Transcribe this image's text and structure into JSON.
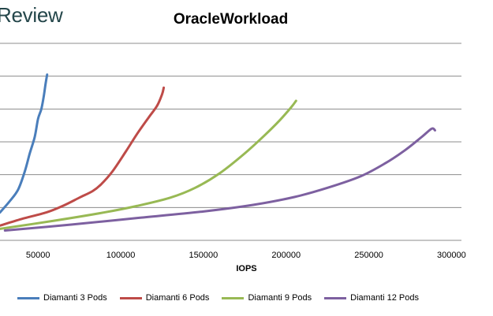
{
  "watermark": "Review",
  "chart_data": {
    "type": "line",
    "title": "OracleWorkload",
    "xlabel": "IOPS",
    "ylabel": "",
    "xlim": [
      27000,
      306000
    ],
    "ylim": [
      0,
      6
    ],
    "xticks": [
      50000,
      100000,
      150000,
      200000,
      250000,
      300000
    ],
    "xtick_labels": [
      "50000",
      "100000",
      "150000",
      "200000",
      "250000",
      "300000"
    ],
    "grid": true,
    "legend": "bottom",
    "series": [
      {
        "name": "Diamanti 3 Pods",
        "color": "#4a7ebb",
        "x": [
          27000,
          33000,
          38000,
          42000,
          45000,
          48000,
          50000,
          52000,
          53500,
          54500,
          55500
        ],
        "y": [
          0.85,
          1.2,
          1.55,
          2.1,
          2.65,
          3.15,
          3.7,
          4.0,
          4.4,
          4.75,
          5.05
        ]
      },
      {
        "name": "Diamanti 6 Pods",
        "color": "#be4b48",
        "x": [
          27000,
          40000,
          55000,
          65000,
          75000,
          83000,
          88000,
          95000,
          103000,
          110000,
          117000,
          122000,
          125000,
          126000
        ],
        "y": [
          0.45,
          0.65,
          0.85,
          1.05,
          1.3,
          1.5,
          1.7,
          2.1,
          2.7,
          3.25,
          3.75,
          4.1,
          4.45,
          4.65
        ]
      },
      {
        "name": "Diamanti 9 Pods",
        "color": "#98b954",
        "x": [
          27000,
          60000,
          90000,
          110000,
          130000,
          145000,
          160000,
          175000,
          187000,
          196000,
          203000,
          206000
        ],
        "y": [
          0.35,
          0.6,
          0.85,
          1.05,
          1.3,
          1.6,
          2.05,
          2.65,
          3.2,
          3.65,
          4.05,
          4.25
        ]
      },
      {
        "name": "Diamanti 12 Pods",
        "color": "#7d60a0",
        "x": [
          30000,
          70000,
          110000,
          150000,
          180000,
          205000,
          225000,
          245000,
          260000,
          272000,
          282000,
          288000,
          290000
        ],
        "y": [
          0.3,
          0.48,
          0.68,
          0.88,
          1.08,
          1.32,
          1.6,
          1.95,
          2.35,
          2.75,
          3.15,
          3.4,
          3.35
        ]
      }
    ]
  }
}
